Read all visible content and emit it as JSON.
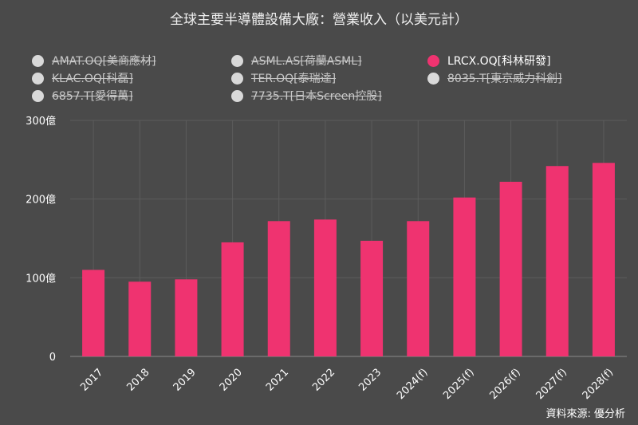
{
  "title": "全球主要半導體設備大廠：營業收入（以美元計）",
  "legend": [
    {
      "label": "AMAT.OQ[美商應材]",
      "active": false,
      "color": "#d9d9d9"
    },
    {
      "label": "ASML.AS[荷蘭ASML]",
      "active": false,
      "color": "#d9d9d9"
    },
    {
      "label": "LRCX.OQ[科林研發]",
      "active": true,
      "color": "#ef3370"
    },
    {
      "label": "KLAC.OQ[科磊]",
      "active": false,
      "color": "#d9d9d9"
    },
    {
      "label": "TER.OQ[泰瑞達]",
      "active": false,
      "color": "#d9d9d9"
    },
    {
      "label": "8035.T[東京威力科創]",
      "active": false,
      "color": "#d9d9d9"
    },
    {
      "label": "6857.T[愛得萬]",
      "active": false,
      "color": "#d9d9d9"
    },
    {
      "label": "7735.T[日本Screen控股]",
      "active": false,
      "color": "#d9d9d9"
    }
  ],
  "source": "資料來源: 優分析",
  "chart_data": {
    "type": "bar",
    "categories": [
      "2017",
      "2018",
      "2019",
      "2020",
      "2021",
      "2022",
      "2023",
      "2024(f)",
      "2025(f)",
      "2026(f)",
      "2027(f)",
      "2028(f)"
    ],
    "series": [
      {
        "name": "LRCX.OQ[科林研發]",
        "color": "#ef3370",
        "values": [
          110,
          95,
          98,
          145,
          172,
          174,
          147,
          172,
          202,
          222,
          242,
          246
        ]
      }
    ],
    "ylim": [
      0,
      300
    ],
    "yticks": [
      0,
      100,
      200,
      300
    ],
    "ytick_labels": [
      "0",
      "100億",
      "200億",
      "300億"
    ],
    "grid": true,
    "legend_position": "top"
  }
}
